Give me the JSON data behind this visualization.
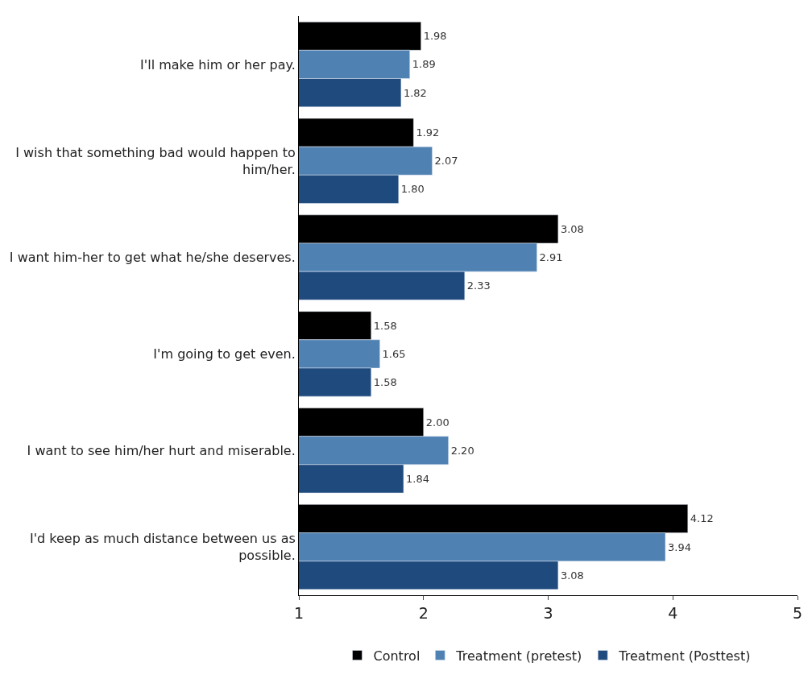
{
  "chart_data": {
    "type": "bar",
    "orientation": "horizontal",
    "categories": [
      "I'll make him or her pay.",
      "I wish that something bad would happen to him/her.",
      "I want him-her to get what he/she deserves.",
      "I'm going to get even.",
      "I want to see him/her hurt and miserable.",
      "I'd keep as much distance between us as possible."
    ],
    "series": [
      {
        "name": "Control",
        "color": "#000000",
        "values": [
          1.98,
          1.92,
          3.08,
          1.58,
          2.0,
          4.12
        ],
        "value_labels": [
          "1.98",
          "1.92",
          "3.08",
          "1.58",
          "2.00",
          "4.12"
        ]
      },
      {
        "name": "Treatment (pretest)",
        "color": "#4f81b3",
        "values": [
          1.89,
          2.07,
          2.91,
          1.65,
          2.2,
          3.94
        ],
        "value_labels": [
          "1.89",
          "2.07",
          "2.91",
          "1.65",
          "2.20",
          "3.94"
        ]
      },
      {
        "name": "Treatment (Posttest)",
        "color": "#1f4a7d",
        "values": [
          1.82,
          1.8,
          2.33,
          1.58,
          1.84,
          3.08
        ],
        "value_labels": [
          "1.82",
          "1.80",
          "2.33",
          "1.58",
          "1.84",
          "3.08"
        ]
      }
    ],
    "xlim": [
      1,
      5
    ],
    "xticks": [
      1,
      2,
      3,
      4,
      5
    ],
    "legend": "bottom"
  }
}
